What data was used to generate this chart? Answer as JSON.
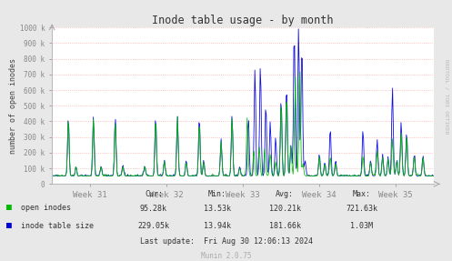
{
  "title": "Inode table usage - by month",
  "ylabel": "number of open inodes",
  "right_label": "RRDTOOL / TOBI OETIKER",
  "background_color": "#e8e8e8",
  "plot_bg_color": "#ffffff",
  "grid_color": "#ff8888",
  "line_color_green": "#00bb00",
  "line_color_blue": "#0000dd",
  "ylim": [
    0,
    1000000
  ],
  "yticks": [
    0,
    100000,
    200000,
    300000,
    400000,
    500000,
    600000,
    700000,
    800000,
    900000,
    1000000
  ],
  "ytick_labels": [
    "0",
    "100 k",
    "200 k",
    "300 k",
    "400 k",
    "500 k",
    "600 k",
    "700 k",
    "800 k",
    "900 k",
    "1000 k"
  ],
  "week_labels": [
    "Week 31",
    "Week 32",
    "Week 33",
    "Week 34",
    "Week 35"
  ],
  "legend": [
    {
      "label": "open inodes",
      "color": "#00bb00"
    },
    {
      "label": "inode table size",
      "color": "#0000dd"
    }
  ],
  "cur1": "95.28k",
  "min1": "13.53k",
  "avg1": "120.21k",
  "max1": "721.63k",
  "cur2": "229.05k",
  "min2": "13.94k",
  "avg2": "181.66k",
  "max2": "1.03M",
  "last_update": "Last update:  Fri Aug 30 12:06:13 2024",
  "munin_label": "Munin 2.0.75"
}
